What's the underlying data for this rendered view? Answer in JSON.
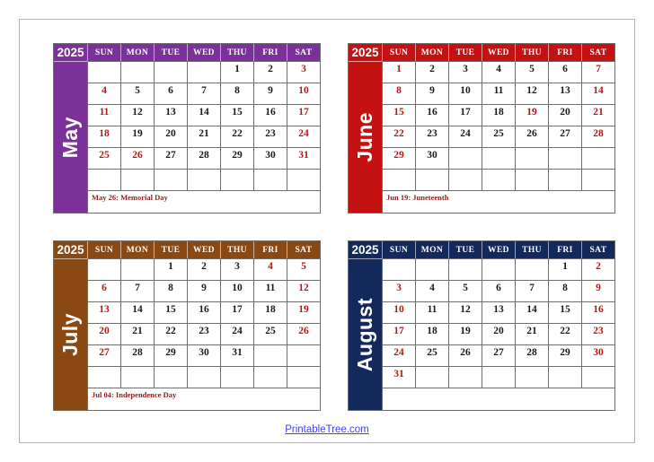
{
  "year": "2025",
  "day_headers": [
    "SUN",
    "MON",
    "TUE",
    "WED",
    "THU",
    "FRI",
    "SAT"
  ],
  "colors": {
    "weekend_red": "#c11212",
    "note_maroon": "#8b1f1f",
    "link_blue": "#4343ee",
    "may_accent": "#7b3199",
    "june_accent": "#c41112",
    "july_accent": "#8a4812",
    "august_accent": "#13295c"
  },
  "calendars": [
    {
      "month": "May",
      "accent": "#7b3199",
      "weeks": [
        [
          "",
          "",
          "",
          "",
          "1",
          "2",
          "3"
        ],
        [
          "4",
          "5",
          "6",
          "7",
          "8",
          "9",
          "10"
        ],
        [
          "11",
          "12",
          "13",
          "14",
          "15",
          "16",
          "17"
        ],
        [
          "18",
          "19",
          "20",
          "21",
          "22",
          "23",
          "24"
        ],
        [
          "25",
          "26",
          "27",
          "28",
          "29",
          "30",
          "31"
        ],
        [
          "",
          "",
          "",
          "",
          "",
          "",
          ""
        ]
      ],
      "red_dates": [
        "3",
        "4",
        "10",
        "11",
        "17",
        "18",
        "24",
        "25",
        "26",
        "31"
      ],
      "note": "May 26: Memorial Day"
    },
    {
      "month": "June",
      "accent": "#c41112",
      "weeks": [
        [
          "1",
          "2",
          "3",
          "4",
          "5",
          "6",
          "7"
        ],
        [
          "8",
          "9",
          "10",
          "11",
          "12",
          "13",
          "14"
        ],
        [
          "15",
          "16",
          "17",
          "18",
          "19",
          "20",
          "21"
        ],
        [
          "22",
          "23",
          "24",
          "25",
          "26",
          "27",
          "28"
        ],
        [
          "29",
          "30",
          "",
          "",
          "",
          "",
          ""
        ],
        [
          "",
          "",
          "",
          "",
          "",
          "",
          ""
        ]
      ],
      "red_dates": [
        "1",
        "7",
        "8",
        "14",
        "15",
        "19",
        "21",
        "22",
        "28",
        "29"
      ],
      "note": "Jun 19: Juneteenth"
    },
    {
      "month": "July",
      "accent": "#8a4812",
      "weeks": [
        [
          "",
          "",
          "1",
          "2",
          "3",
          "4",
          "5"
        ],
        [
          "6",
          "7",
          "8",
          "9",
          "10",
          "11",
          "12"
        ],
        [
          "13",
          "14",
          "15",
          "16",
          "17",
          "18",
          "19"
        ],
        [
          "20",
          "21",
          "22",
          "23",
          "24",
          "25",
          "26"
        ],
        [
          "27",
          "28",
          "29",
          "30",
          "31",
          "",
          ""
        ],
        [
          "",
          "",
          "",
          "",
          "",
          "",
          ""
        ]
      ],
      "red_dates": [
        "4",
        "5",
        "6",
        "12",
        "13",
        "19",
        "20",
        "26",
        "27"
      ],
      "note": "Jul 04: Independence Day"
    },
    {
      "month": "August",
      "accent": "#13295c",
      "weeks": [
        [
          "",
          "",
          "",
          "",
          "",
          "1",
          "2"
        ],
        [
          "3",
          "4",
          "5",
          "6",
          "7",
          "8",
          "9"
        ],
        [
          "10",
          "11",
          "12",
          "13",
          "14",
          "15",
          "16"
        ],
        [
          "17",
          "18",
          "19",
          "20",
          "21",
          "22",
          "23"
        ],
        [
          "24",
          "25",
          "26",
          "27",
          "28",
          "29",
          "30"
        ],
        [
          "31",
          "",
          "",
          "",
          "",
          "",
          ""
        ]
      ],
      "red_dates": [
        "2",
        "3",
        "9",
        "10",
        "16",
        "17",
        "23",
        "24",
        "30",
        "31"
      ],
      "note": ""
    }
  ],
  "footer": {
    "link_text": "PrintableTree.com"
  }
}
